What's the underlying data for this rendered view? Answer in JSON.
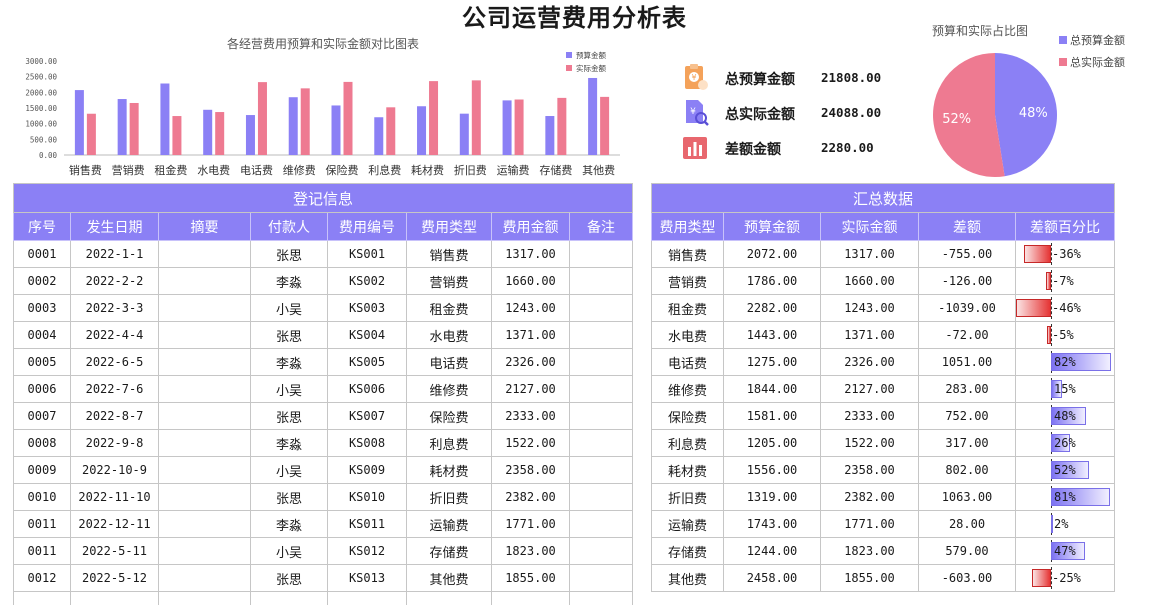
{
  "title": "公司运营费用分析表",
  "kpis": [
    {
      "label": "总预算金额",
      "value": "21808.00",
      "icon": "budget-document-icon",
      "color": "#f4a25a"
    },
    {
      "label": "总实际金额",
      "value": "24088.00",
      "icon": "search-document-icon",
      "color": "#8b80f5"
    },
    {
      "label": "差额金额",
      "value": "2280.00",
      "icon": "bar-chart-icon",
      "color": "#e8676e"
    }
  ],
  "colors": {
    "header_bg": "#8b80f5",
    "budget": "#8b80f5",
    "actual": "#ee7a91",
    "negative_bar": "#e53535",
    "positive_bar": "#7d73f2"
  },
  "chart_data": [
    {
      "type": "bar",
      "title": "各经营费用预算和实际金额对比图表",
      "categories": [
        "销售费",
        "营销费",
        "租金费",
        "水电费",
        "电话费",
        "维修费",
        "保险费",
        "利息费",
        "耗材费",
        "折旧费",
        "运输费",
        "存储费",
        "其他费"
      ],
      "series": [
        {
          "name": "预算金额",
          "values": [
            2072,
            1786,
            2282,
            1443,
            1275,
            1844,
            1581,
            1205,
            1556,
            1319,
            1743,
            1244,
            2458
          ]
        },
        {
          "name": "实际金额",
          "values": [
            1317,
            1660,
            1243,
            1371,
            2326,
            2127,
            2333,
            1522,
            2358,
            2382,
            1771,
            1823,
            1855
          ]
        }
      ],
      "yticks": [
        "3000.00",
        "2500.00",
        "2000.00",
        "1500.00",
        "1000.00",
        "500.00",
        "0.00"
      ],
      "ylim": [
        0,
        3000
      ],
      "grid": false,
      "legend": "top-right"
    },
    {
      "type": "pie",
      "title": "预算和实际占比图",
      "categories": [
        "总预算金额",
        "总实际金额"
      ],
      "values": [
        21808,
        24088
      ],
      "labels": [
        "48%",
        "52%"
      ],
      "legend": "right"
    }
  ],
  "register": {
    "title": "登记信息",
    "columns": [
      "序号",
      "发生日期",
      "摘要",
      "付款人",
      "费用编号",
      "费用类型",
      "费用金额",
      "备注"
    ],
    "rows": [
      [
        "0001",
        "2022-1-1",
        "",
        "张思",
        "KS001",
        "销售费",
        "1317.00",
        ""
      ],
      [
        "0002",
        "2022-2-2",
        "",
        "李淼",
        "KS002",
        "营销费",
        "1660.00",
        ""
      ],
      [
        "0003",
        "2022-3-3",
        "",
        "小吴",
        "KS003",
        "租金费",
        "1243.00",
        ""
      ],
      [
        "0004",
        "2022-4-4",
        "",
        "张思",
        "KS004",
        "水电费",
        "1371.00",
        ""
      ],
      [
        "0005",
        "2022-6-5",
        "",
        "李淼",
        "KS005",
        "电话费",
        "2326.00",
        ""
      ],
      [
        "0006",
        "2022-7-6",
        "",
        "小吴",
        "KS006",
        "维修费",
        "2127.00",
        ""
      ],
      [
        "0007",
        "2022-8-7",
        "",
        "张思",
        "KS007",
        "保险费",
        "2333.00",
        ""
      ],
      [
        "0008",
        "2022-9-8",
        "",
        "李淼",
        "KS008",
        "利息费",
        "1522.00",
        ""
      ],
      [
        "0009",
        "2022-10-9",
        "",
        "小吴",
        "KS009",
        "耗材费",
        "2358.00",
        ""
      ],
      [
        "0010",
        "2022-11-10",
        "",
        "张思",
        "KS010",
        "折旧费",
        "2382.00",
        ""
      ],
      [
        "0011",
        "2022-12-11",
        "",
        "李淼",
        "KS011",
        "运输费",
        "1771.00",
        ""
      ],
      [
        "0011",
        "2022-5-11",
        "",
        "小吴",
        "KS012",
        "存储费",
        "1823.00",
        ""
      ],
      [
        "0012",
        "2022-5-12",
        "",
        "张思",
        "KS013",
        "其他费",
        "1855.00",
        ""
      ]
    ]
  },
  "summary": {
    "title": "汇总数据",
    "columns": [
      "费用类型",
      "预算金额",
      "实际金额",
      "差额",
      "差额百分比"
    ],
    "rows": [
      {
        "type": "销售费",
        "budget": "2072.00",
        "actual": "1317.00",
        "diff": "-755.00",
        "pct": "-36%",
        "ratio": -0.36
      },
      {
        "type": "营销费",
        "budget": "1786.00",
        "actual": "1660.00",
        "diff": "-126.00",
        "pct": "-7%",
        "ratio": -0.07
      },
      {
        "type": "租金费",
        "budget": "2282.00",
        "actual": "1243.00",
        "diff": "-1039.00",
        "pct": "-46%",
        "ratio": -0.46
      },
      {
        "type": "水电费",
        "budget": "1443.00",
        "actual": "1371.00",
        "diff": "-72.00",
        "pct": "-5%",
        "ratio": -0.05
      },
      {
        "type": "电话费",
        "budget": "1275.00",
        "actual": "2326.00",
        "diff": "1051.00",
        "pct": "82%",
        "ratio": 0.82
      },
      {
        "type": "维修费",
        "budget": "1844.00",
        "actual": "2127.00",
        "diff": "283.00",
        "pct": "15%",
        "ratio": 0.15
      },
      {
        "type": "保险费",
        "budget": "1581.00",
        "actual": "2333.00",
        "diff": "752.00",
        "pct": "48%",
        "ratio": 0.48
      },
      {
        "type": "利息费",
        "budget": "1205.00",
        "actual": "1522.00",
        "diff": "317.00",
        "pct": "26%",
        "ratio": 0.26
      },
      {
        "type": "耗材费",
        "budget": "1556.00",
        "actual": "2358.00",
        "diff": "802.00",
        "pct": "52%",
        "ratio": 0.52
      },
      {
        "type": "折旧费",
        "budget": "1319.00",
        "actual": "2382.00",
        "diff": "1063.00",
        "pct": "81%",
        "ratio": 0.81
      },
      {
        "type": "运输费",
        "budget": "1743.00",
        "actual": "1771.00",
        "diff": "28.00",
        "pct": "2%",
        "ratio": 0.02
      },
      {
        "type": "存储费",
        "budget": "1244.00",
        "actual": "1823.00",
        "diff": "579.00",
        "pct": "47%",
        "ratio": 0.47
      },
      {
        "type": "其他费",
        "budget": "2458.00",
        "actual": "1855.00",
        "diff": "-603.00",
        "pct": "-25%",
        "ratio": -0.25
      }
    ]
  }
}
